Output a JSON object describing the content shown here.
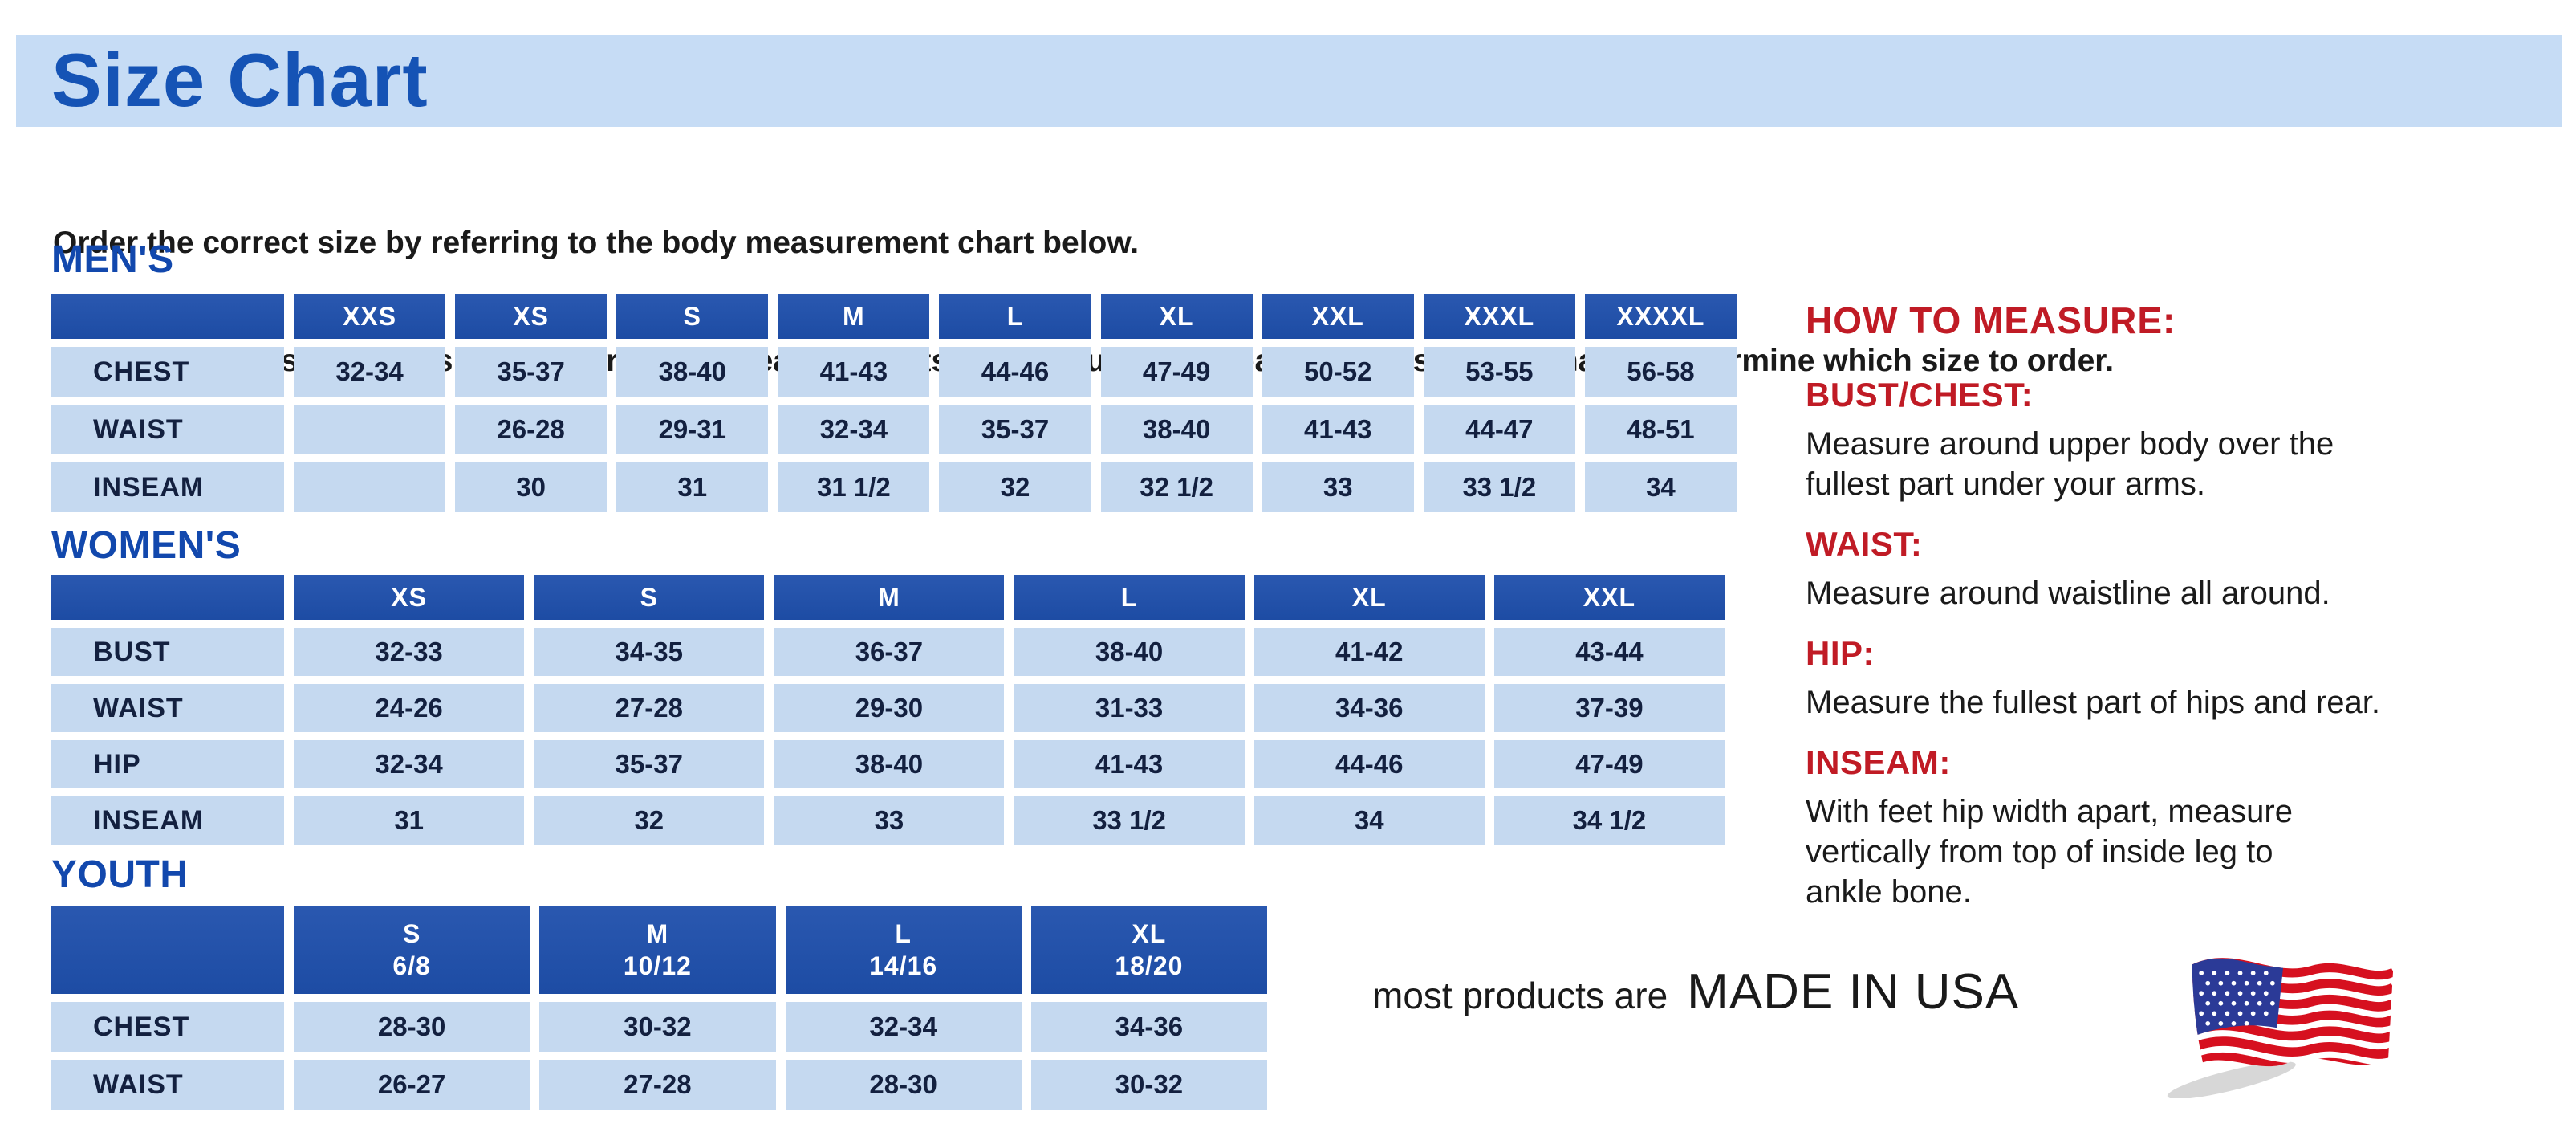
{
  "title": "Size Chart",
  "intro_line1": "Order the correct size by referring to the body measurement chart below.",
  "intro_line2": "Measurements shown on size chart are body measurements.  Find your body measurements on the chart to determine which size to order.",
  "colors": {
    "band_bg": "#c6dcf5",
    "title_blue": "#1553b5",
    "heading_blue": "#1248ad",
    "header_blue": "#1d4ca4",
    "header_blue_light": "#2a58b0",
    "cell_blue": "#c5d9f0",
    "cell_text": "#13203f",
    "red": "#c01b25",
    "text_black": "#1a1a1a",
    "flag_red": "#d6101f",
    "flag_blue": "#2b3a97"
  },
  "tables": {
    "mens": {
      "heading": "MEN'S",
      "columns": [
        "",
        "XXS",
        "XS",
        "S",
        "M",
        "L",
        "XL",
        "XXL",
        "XXXL",
        "XXXXL"
      ],
      "rows": [
        {
          "label": "CHEST",
          "values": [
            "32-34",
            "35-37",
            "38-40",
            "41-43",
            "44-46",
            "47-49",
            "50-52",
            "53-55",
            "56-58"
          ]
        },
        {
          "label": "WAIST",
          "values": [
            "",
            "26-28",
            "29-31",
            "32-34",
            "35-37",
            "38-40",
            "41-43",
            "44-47",
            "48-51"
          ]
        },
        {
          "label": "INSEAM",
          "values": [
            "",
            "30",
            "31",
            "31 1/2",
            "32",
            "32 1/2",
            "33",
            "33 1/2",
            "34"
          ]
        }
      ]
    },
    "womens": {
      "heading": "WOMEN'S",
      "columns": [
        "",
        "XS",
        "S",
        "M",
        "L",
        "XL",
        "XXL"
      ],
      "rows": [
        {
          "label": "BUST",
          "values": [
            "32-33",
            "34-35",
            "36-37",
            "38-40",
            "41-42",
            "43-44"
          ]
        },
        {
          "label": "WAIST",
          "values": [
            "24-26",
            "27-28",
            "29-30",
            "31-33",
            "34-36",
            "37-39"
          ]
        },
        {
          "label": "HIP",
          "values": [
            "32-34",
            "35-37",
            "38-40",
            "41-43",
            "44-46",
            "47-49"
          ]
        },
        {
          "label": "INSEAM",
          "values": [
            "31",
            "32",
            "33",
            "33 1/2",
            "34",
            "34 1/2"
          ]
        }
      ]
    },
    "youth": {
      "heading": "YOUTH",
      "columns": [
        "",
        "S\n6/8",
        "M\n10/12",
        "L\n14/16",
        "XL\n18/20"
      ],
      "rows": [
        {
          "label": "CHEST",
          "values": [
            "28-30",
            "30-32",
            "32-34",
            "34-36"
          ]
        },
        {
          "label": "WAIST",
          "values": [
            "26-27",
            "27-28",
            "28-30",
            "30-32"
          ]
        }
      ]
    }
  },
  "how_to_measure": {
    "heading": "HOW TO MEASURE:",
    "sections": [
      {
        "label": "BUST/CHEST:",
        "text": "Measure around upper body over the\nfullest part under your arms."
      },
      {
        "label": "WAIST:",
        "text": "Measure around waistline all around."
      },
      {
        "label": "HIP:",
        "text": "Measure the fullest part of hips and rear."
      },
      {
        "label": "INSEAM:",
        "text": "With feet hip width apart, measure\nvertically from top of inside leg to\nankle bone."
      }
    ]
  },
  "footer": {
    "prefix": "most products are",
    "emphasis": "MADE IN USA",
    "flag_icon": "usa-flag-icon"
  }
}
